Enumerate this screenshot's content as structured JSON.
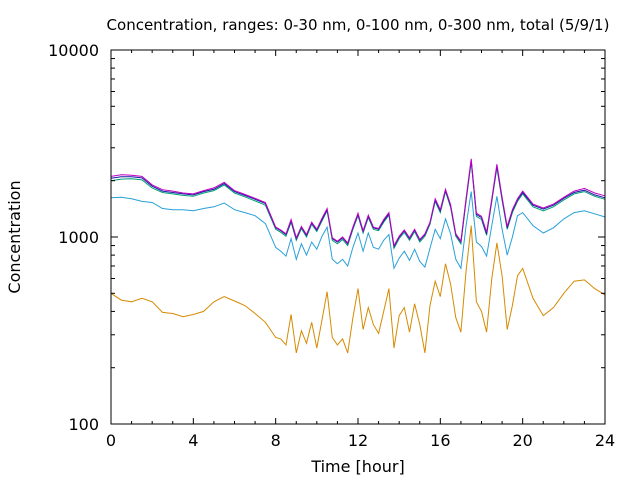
{
  "chart_data": {
    "type": "line",
    "title": "Concentration, ranges: 0-30 nm, 0-100 nm, 0-300 nm, total (5/9/1)",
    "xlabel": "Time [hour]",
    "ylabel": "Concentration",
    "xlim": [
      0,
      24
    ],
    "ylim": [
      100,
      10000
    ],
    "yscale": "log",
    "grid": false,
    "legend": "none",
    "xticks": [
      "0",
      "4",
      "8",
      "12",
      "16",
      "20",
      "24"
    ],
    "xtick_values": [
      0,
      4,
      8,
      12,
      16,
      20,
      24
    ],
    "yticks": [
      "100",
      "1000",
      "10000"
    ],
    "ytick_values": [
      100,
      1000,
      10000
    ],
    "x": [
      0,
      0.5,
      1,
      1.5,
      2,
      2.5,
      3,
      3.5,
      4,
      4.5,
      5,
      5.5,
      6,
      6.5,
      7,
      7.5,
      8,
      8.25,
      8.5,
      8.75,
      9,
      9.25,
      9.5,
      9.75,
      10,
      10.25,
      10.5,
      10.75,
      11,
      11.25,
      11.5,
      11.75,
      12,
      12.25,
      12.5,
      12.75,
      13,
      13.25,
      13.5,
      13.75,
      14,
      14.25,
      14.5,
      14.75,
      15,
      15.25,
      15.5,
      15.75,
      16,
      16.25,
      16.5,
      16.75,
      17,
      17.25,
      17.5,
      17.75,
      18,
      18.25,
      18.5,
      18.75,
      19,
      19.25,
      19.5,
      19.75,
      20,
      20.5,
      21,
      21.5,
      22,
      22.5,
      23,
      23.5,
      24
    ],
    "series": [
      {
        "color": "#d68a00",
        "values": [
          500,
          460,
          450,
          470,
          450,
          395,
          390,
          375,
          385,
          400,
          450,
          480,
          455,
          430,
          390,
          350,
          290,
          285,
          265,
          385,
          240,
          315,
          270,
          350,
          255,
          360,
          510,
          290,
          265,
          285,
          240,
          370,
          530,
          320,
          420,
          340,
          305,
          400,
          530,
          255,
          380,
          420,
          310,
          440,
          340,
          240,
          430,
          580,
          480,
          720,
          560,
          370,
          310,
          660,
          1150,
          450,
          400,
          310,
          600,
          930,
          620,
          320,
          430,
          620,
          680,
          470,
          380,
          420,
          500,
          580,
          590,
          530,
          490
        ]
      },
      {
        "color": "#28a0d8",
        "values": [
          1620,
          1630,
          1600,
          1550,
          1530,
          1420,
          1400,
          1400,
          1380,
          1420,
          1450,
          1520,
          1400,
          1350,
          1300,
          1180,
          880,
          840,
          790,
          980,
          760,
          920,
          800,
          940,
          860,
          1010,
          1130,
          760,
          720,
          760,
          700,
          880,
          1050,
          840,
          1050,
          880,
          860,
          960,
          1030,
          680,
          770,
          840,
          750,
          860,
          740,
          690,
          870,
          1100,
          980,
          1250,
          1040,
          760,
          680,
          1150,
          1750,
          940,
          890,
          790,
          1150,
          1650,
          1100,
          800,
          1000,
          1300,
          1350,
          1150,
          1050,
          1120,
          1250,
          1350,
          1380,
          1330,
          1280
        ]
      },
      {
        "color": "#009e73",
        "values": [
          2000,
          2040,
          2050,
          2020,
          1830,
          1730,
          1700,
          1670,
          1650,
          1720,
          1770,
          1900,
          1720,
          1640,
          1560,
          1480,
          1100,
          1060,
          1010,
          1200,
          960,
          1110,
          1000,
          1170,
          1070,
          1220,
          1380,
          960,
          920,
          970,
          900,
          1100,
          1300,
          1050,
          1270,
          1100,
          1080,
          1200,
          1310,
          870,
          980,
          1060,
          960,
          1070,
          940,
          1010,
          1170,
          1550,
          1350,
          1750,
          1440,
          1010,
          920,
          1560,
          2520,
          1290,
          1240,
          1020,
          1550,
          2350,
          1570,
          1100,
          1350,
          1550,
          1700,
          1450,
          1380,
          1450,
          1580,
          1700,
          1750,
          1650,
          1590
        ]
      },
      {
        "color": "#1a1aa8",
        "values": [
          2060,
          2100,
          2100,
          2070,
          1870,
          1760,
          1730,
          1700,
          1680,
          1750,
          1800,
          1930,
          1750,
          1670,
          1590,
          1510,
          1120,
          1080,
          1030,
          1220,
          980,
          1130,
          1020,
          1190,
          1090,
          1240,
          1400,
          980,
          940,
          990,
          920,
          1120,
          1320,
          1070,
          1290,
          1120,
          1100,
          1220,
          1330,
          890,
          1000,
          1080,
          980,
          1090,
          960,
          1030,
          1190,
          1580,
          1380,
          1780,
          1470,
          1030,
          940,
          1590,
          2570,
          1320,
          1270,
          1040,
          1580,
          2400,
          1600,
          1120,
          1380,
          1580,
          1730,
          1480,
          1410,
          1480,
          1610,
          1730,
          1780,
          1680,
          1620
        ]
      },
      {
        "color": "#c000c0",
        "values": [
          2110,
          2150,
          2140,
          2110,
          1900,
          1790,
          1760,
          1720,
          1700,
          1770,
          1830,
          1960,
          1770,
          1690,
          1610,
          1530,
          1130,
          1090,
          1040,
          1240,
          990,
          1140,
          1030,
          1200,
          1100,
          1260,
          1420,
          990,
          950,
          1000,
          930,
          1130,
          1340,
          1080,
          1310,
          1130,
          1110,
          1240,
          1350,
          900,
          1010,
          1090,
          990,
          1100,
          970,
          1040,
          1200,
          1600,
          1400,
          1800,
          1490,
          1040,
          950,
          1610,
          2620,
          1340,
          1290,
          1060,
          1600,
          2450,
          1630,
          1140,
          1400,
          1600,
          1760,
          1500,
          1430,
          1500,
          1630,
          1760,
          1820,
          1720,
          1660
        ]
      }
    ]
  }
}
